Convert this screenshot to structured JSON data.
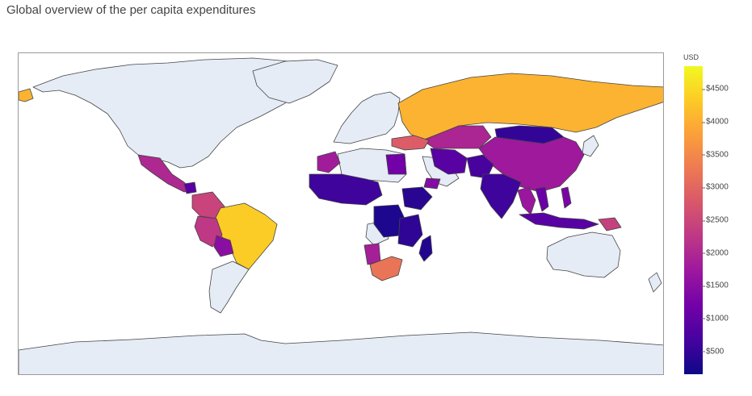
{
  "chart_title": "Global overview of the per capita expenditures",
  "colorbar": {
    "title": "USD",
    "min": 150,
    "max": 4850,
    "ticks": [
      "$500",
      "$1000",
      "$1500",
      "$2000",
      "$2500",
      "$3000",
      "$3500",
      "$4000",
      "$4500"
    ],
    "tick_values": [
      500,
      1000,
      1500,
      2000,
      2500,
      3000,
      3500,
      4000,
      4500
    ],
    "colorscale": [
      "#0d0887",
      "#46039f",
      "#7201a8",
      "#9c179e",
      "#bd3786",
      "#d8576b",
      "#ed7953",
      "#fb9f3a",
      "#fdca26",
      "#f0f921"
    ]
  },
  "colors": {
    "no_data_land": "#e5ecf6",
    "country_border": "#444444",
    "frame": "#9a9a9a"
  },
  "chart_data": {
    "type": "choropleth",
    "title": "Global overview of the per capita expenditures",
    "colorbar_title": "USD",
    "range": [
      150,
      4850
    ],
    "regions": [
      {
        "name": "Russia",
        "value": 4050
      },
      {
        "name": "Brazil",
        "value": 4350
      },
      {
        "name": "South Africa",
        "value": 3200
      },
      {
        "name": "Turkey",
        "value": 2850
      },
      {
        "name": "Colombia",
        "value": 2450
      },
      {
        "name": "Peru",
        "value": 2250
      },
      {
        "name": "Mexico",
        "value": 2000
      },
      {
        "name": "Kazakhstan",
        "value": 1950
      },
      {
        "name": "China",
        "value": 1750
      },
      {
        "name": "Bolivia",
        "value": 1500
      },
      {
        "name": "Thailand",
        "value": 1700
      },
      {
        "name": "Papua New Guinea",
        "value": 2400
      },
      {
        "name": "Morocco",
        "value": 1800
      },
      {
        "name": "Iran",
        "value": 900
      },
      {
        "name": "India",
        "value": 600
      },
      {
        "name": "Pakistan",
        "value": 700
      },
      {
        "name": "Mongolia",
        "value": 500
      },
      {
        "name": "Indonesia",
        "value": 900
      },
      {
        "name": "Nigeria",
        "value": 600
      },
      {
        "name": "Ethiopia",
        "value": 400
      },
      {
        "name": "Democratic Republic of the Congo",
        "value": 300
      },
      {
        "name": "Tanzania",
        "value": 450
      },
      {
        "name": "Madagascar",
        "value": 350
      },
      {
        "name": "Namibia",
        "value": 1850
      },
      {
        "name": "Guatemala",
        "value": 900
      },
      {
        "name": "Vietnam",
        "value": 1100
      },
      {
        "name": "Philippines",
        "value": 1300
      },
      {
        "name": "Egypt",
        "value": 1200
      },
      {
        "name": "Yemen",
        "value": 1400
      }
    ]
  }
}
